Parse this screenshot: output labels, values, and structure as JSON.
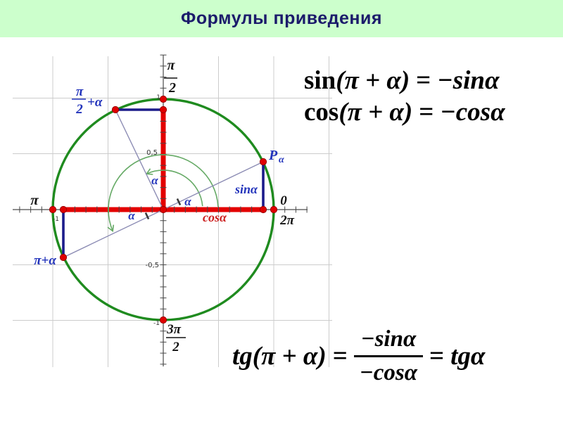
{
  "title": "Формулы приведения",
  "colors": {
    "title_bg": "#ccffcc",
    "title_text": "#1b1b6b",
    "circle_green": "#1f8b1f",
    "arc_green": "#66aa66",
    "segment_red": "#e30000",
    "point_red": "#e00000",
    "segment_navy": "#1b1b8a",
    "ray_gray_blue": "#8c8cb4",
    "label_blue": "#2233bb",
    "label_red": "#cc2020",
    "grid_gray": "#cccccc"
  },
  "formulas": {
    "sin": {
      "fn": "sin",
      "arg": "(π + α)",
      "eq": "=",
      "rhs": "−sinα"
    },
    "cos": {
      "fn": "cos",
      "arg": "(π + α)",
      "eq": "=",
      "rhs": "−cosα"
    },
    "tg": {
      "fn": "tg",
      "arg": "(π + α)",
      "eq": "=",
      "num": "−sinα",
      "den": "−cosα",
      "eq2": "=",
      "rhs": "tgα"
    }
  },
  "diagram": {
    "alpha_deg": 25,
    "axis_labels": {
      "pi_half": {
        "num": "π",
        "den": "2"
      },
      "pi": "π",
      "zero": "0",
      "two_pi": "2π",
      "three_pi_half": {
        "num": "3π",
        "den": "2"
      },
      "pi_half_plus_alpha": {
        "num": "π",
        "den": "2",
        "suffix": "+α"
      },
      "pi_plus_alpha": "π+α"
    },
    "point_label": {
      "base": "P",
      "sub": "α"
    },
    "value_labels": {
      "sin": "sinα",
      "cos": "cosα",
      "alpha": "α",
      "half": "0,5",
      "neg_half": "-0,5",
      "one": "1",
      "neg_one": "-1"
    }
  }
}
